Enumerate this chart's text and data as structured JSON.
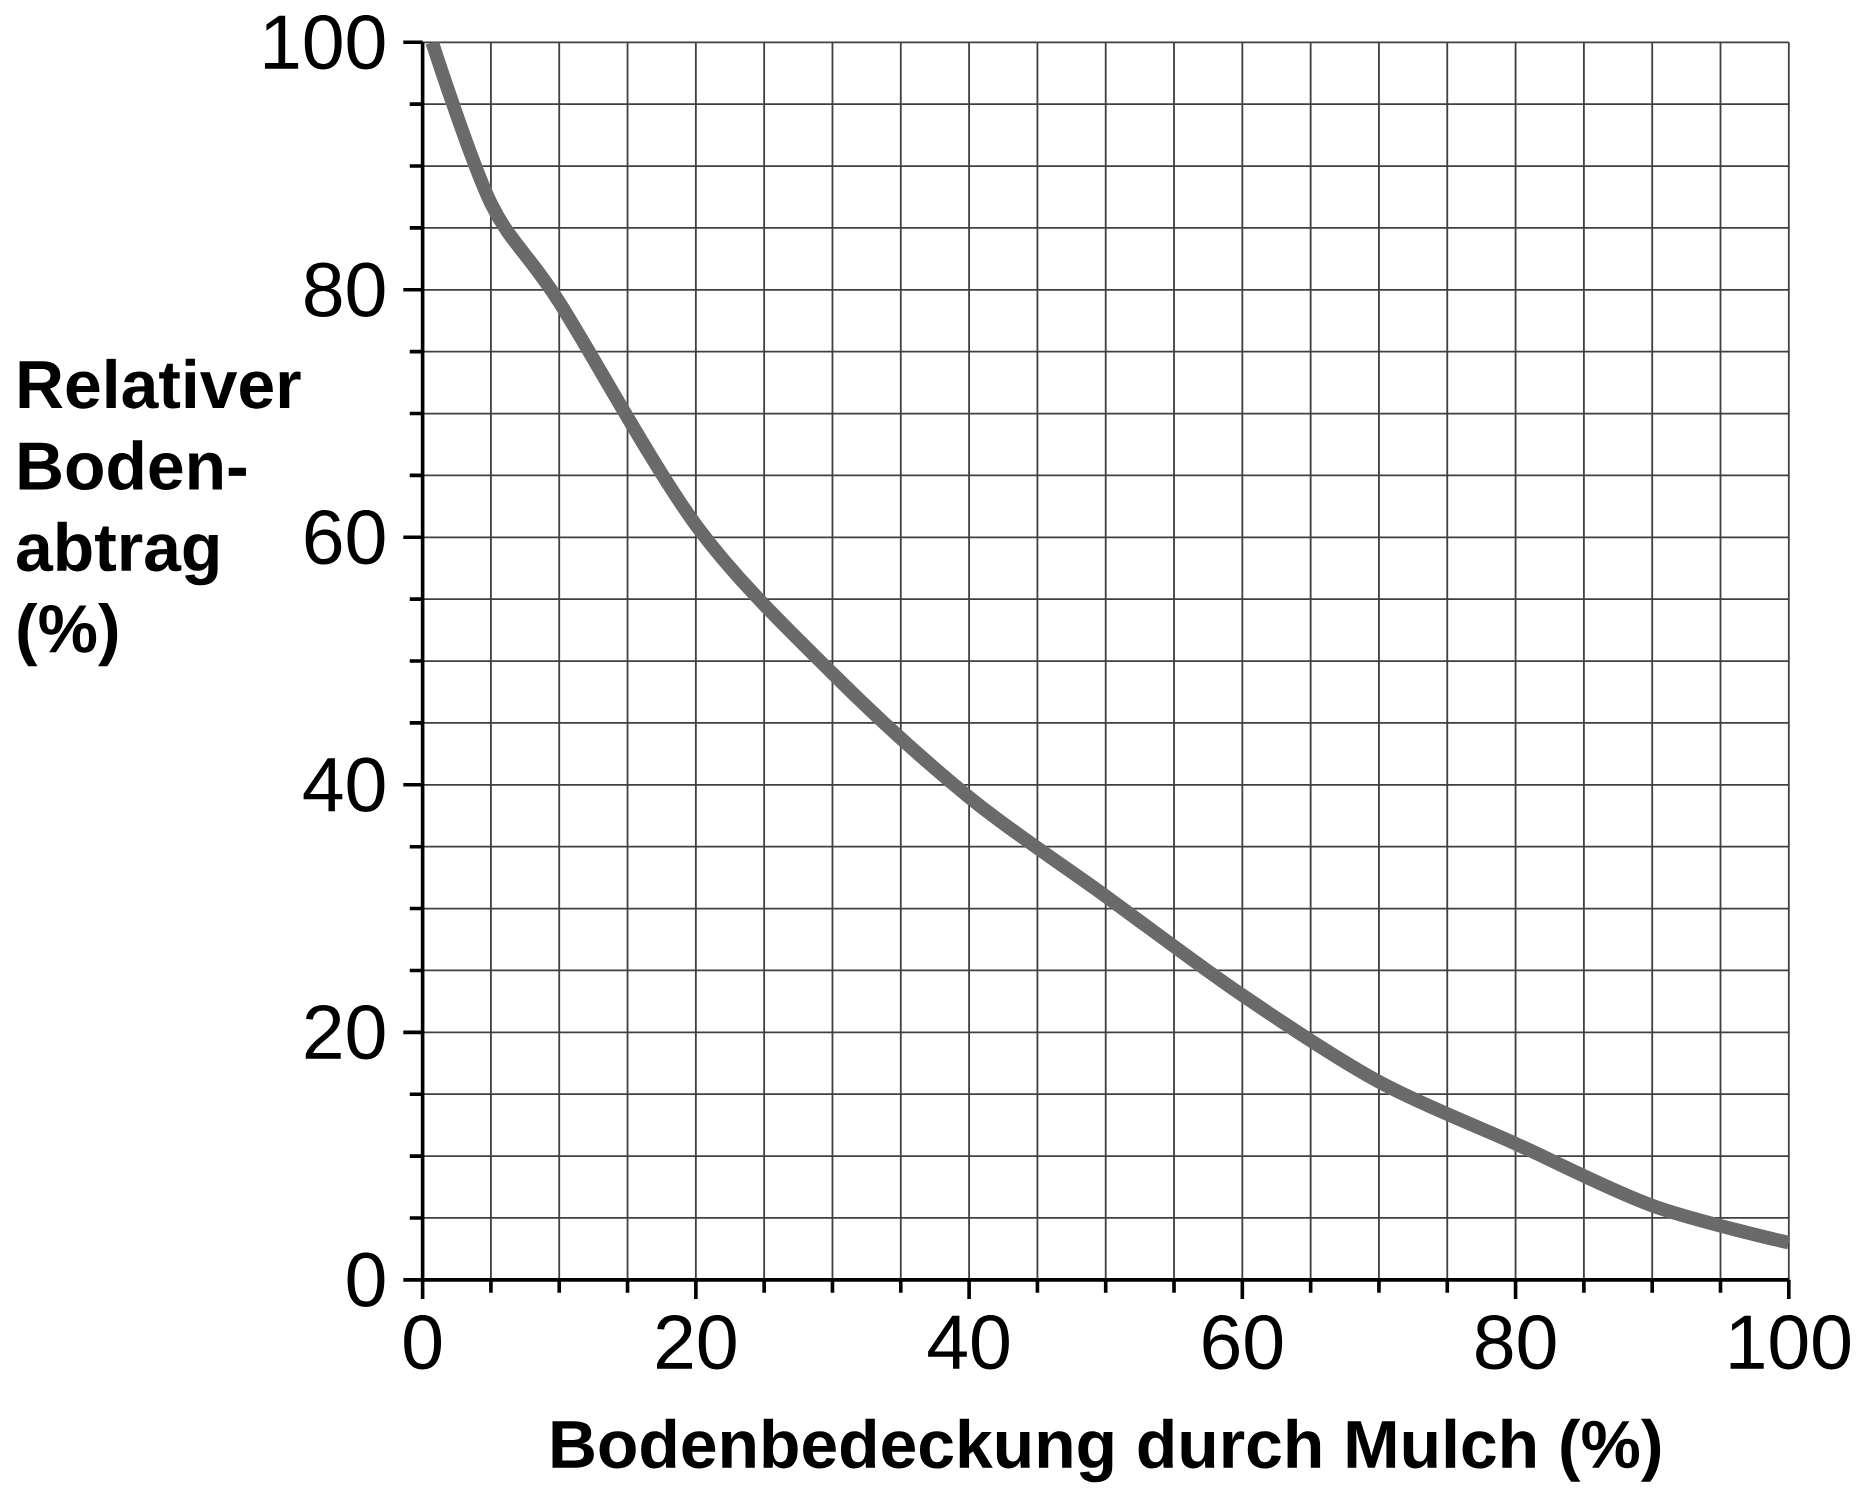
{
  "chart_data": {
    "type": "line",
    "xlabel": "Bodenbedeckung  durch Mulch (%)",
    "ylabel": "Relativer Boden-abtrag (%)",
    "x": [
      0.7,
      5,
      10,
      20,
      30,
      40,
      50,
      60,
      70,
      80,
      90,
      100
    ],
    "series": [
      {
        "color": "#6a6a6a",
        "values": [
          100,
          87,
          79,
          61,
          49,
          39,
          31,
          23,
          16,
          11,
          6,
          3
        ]
      }
    ],
    "xlim": [
      0,
      100
    ],
    "ylim": [
      0,
      100
    ],
    "xticks": [
      0,
      20,
      40,
      60,
      80,
      100
    ],
    "yticks": [
      0,
      20,
      40,
      60,
      80,
      100
    ],
    "grid": true,
    "marker": "none",
    "line_style": "solid"
  }
}
